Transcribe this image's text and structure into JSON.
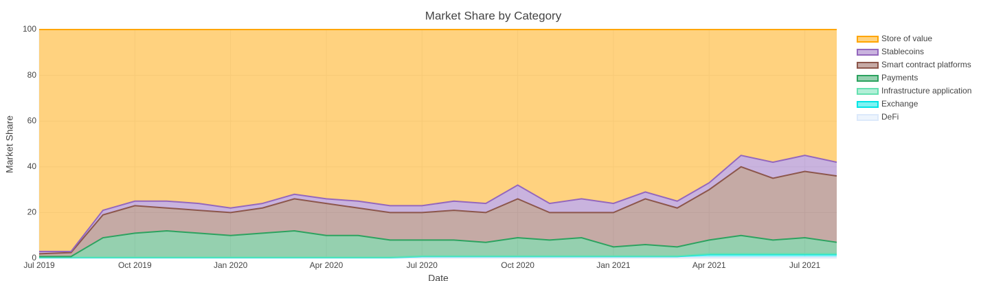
{
  "chart_data": {
    "type": "stacked_area",
    "title": "Market Share by Category",
    "x_label": "Date",
    "y_label": "Market Share",
    "x": [
      "2019-07",
      "2019-08",
      "2019-09",
      "2019-10",
      "2019-11",
      "2019-12",
      "2020-01",
      "2020-02",
      "2020-03",
      "2020-04",
      "2020-05",
      "2020-06",
      "2020-07",
      "2020-08",
      "2020-09",
      "2020-10",
      "2020-11",
      "2020-12",
      "2021-01",
      "2021-02",
      "2021-03",
      "2021-04",
      "2021-05",
      "2021-06",
      "2021-07",
      "2021-08"
    ],
    "xlim": [
      "2019-07",
      "2021-08"
    ],
    "xticks": [
      {
        "value": "2019-07",
        "label": "Jul 2019"
      },
      {
        "value": "2019-10",
        "label": "Oct 2019"
      },
      {
        "value": "2020-01",
        "label": "Jan 2020"
      },
      {
        "value": "2020-04",
        "label": "Apr 2020"
      },
      {
        "value": "2020-07",
        "label": "Jul 2020"
      },
      {
        "value": "2020-10",
        "label": "Oct 2020"
      },
      {
        "value": "2021-01",
        "label": "Jan 2021"
      },
      {
        "value": "2021-04",
        "label": "Apr 2021"
      },
      {
        "value": "2021-07",
        "label": "Jul 2021"
      }
    ],
    "ylim": [
      0,
      100
    ],
    "yticks": [
      0,
      20,
      40,
      60,
      80,
      100
    ],
    "grid": true,
    "legend": "right",
    "series": [
      {
        "name": "Store of value",
        "color": "#ffa500",
        "values": [
          97,
          97,
          79,
          75,
          75,
          76,
          78,
          76,
          72,
          74,
          75,
          77,
          77,
          75,
          76,
          68,
          76,
          74,
          76,
          71,
          75,
          67,
          55,
          58,
          55,
          58
        ]
      },
      {
        "name": "Stablecoins",
        "color": "#9467bd",
        "values": [
          1,
          0.5,
          2,
          2,
          3,
          3,
          2,
          2,
          2,
          2,
          3,
          3,
          3,
          4,
          4,
          6,
          4,
          6,
          4,
          3,
          3,
          3,
          5,
          7,
          7,
          6
        ]
      },
      {
        "name": "Smart contract platforms",
        "color": "#8c564b",
        "values": [
          1.2,
          1.7,
          10,
          12,
          10,
          10,
          10,
          11,
          14,
          14,
          12,
          12,
          12,
          13,
          13,
          17,
          12,
          11,
          15,
          20,
          17,
          22,
          30,
          27,
          29,
          29
        ]
      },
      {
        "name": "Payments",
        "color": "#2ca25f",
        "values": [
          0.3,
          0.3,
          8.5,
          10.5,
          11.5,
          10.5,
          9.5,
          10.5,
          11.5,
          9.5,
          9.5,
          7.5,
          7,
          7,
          6,
          8,
          7,
          8,
          4,
          5,
          4,
          6,
          8,
          6,
          7,
          5
        ]
      },
      {
        "name": "Infrastructure application",
        "color": "#66e0b0",
        "values": [
          0.2,
          0.2,
          0.2,
          0.2,
          0.2,
          0.2,
          0.2,
          0.2,
          0.2,
          0.2,
          0.2,
          0.2,
          0.2,
          0.2,
          0.2,
          0.2,
          0.2,
          0.2,
          0.2,
          0.2,
          0.2,
          0.3,
          0.3,
          0.3,
          0.3,
          0.3
        ]
      },
      {
        "name": "Exchange",
        "color": "#00e5e5",
        "values": [
          0.2,
          0.2,
          0.2,
          0.2,
          0.2,
          0.2,
          0.2,
          0.2,
          0.2,
          0.2,
          0.2,
          0.2,
          0.5,
          0.5,
          0.5,
          0.5,
          0.5,
          0.5,
          0.5,
          0.5,
          0.5,
          1.2,
          1.2,
          1.2,
          1.2,
          1.2
        ]
      },
      {
        "name": "DeFi",
        "color": "#dce9fb",
        "values": [
          0.1,
          0.1,
          0.1,
          0.1,
          0.1,
          0.1,
          0.1,
          0.1,
          0.1,
          0.1,
          0.1,
          0.1,
          0.3,
          0.3,
          0.3,
          0.3,
          0.3,
          0.3,
          0.3,
          0.3,
          0.3,
          0.5,
          0.5,
          0.5,
          0.5,
          0.5
        ]
      }
    ]
  }
}
